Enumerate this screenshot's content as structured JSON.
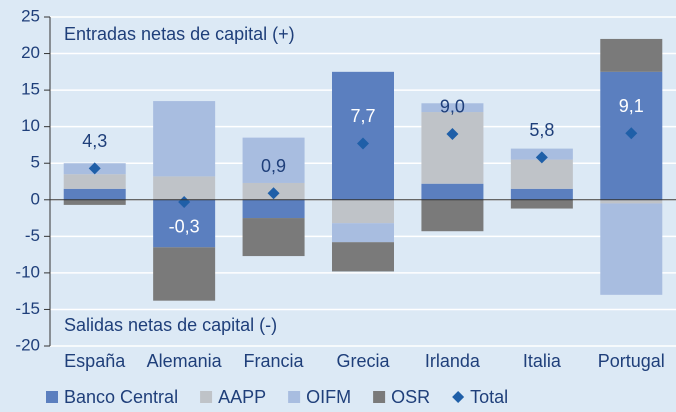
{
  "chart_data": {
    "type": "stacked-bar",
    "categories": [
      "España",
      "Alemania",
      "Francia",
      "Grecia",
      "Irlanda",
      "Italia",
      "Portugal"
    ],
    "series": [
      {
        "name": "Banco Central",
        "color": "#5b7fbf",
        "values": [
          1.5,
          -6.5,
          -2.5,
          17.5,
          2.2,
          1.5,
          17.5
        ]
      },
      {
        "name": "AAPP",
        "color": "#bfc3c8",
        "values": [
          2.0,
          3.2,
          2.3,
          -3.2,
          9.8,
          4.0,
          -0.5
        ]
      },
      {
        "name": "OIFM",
        "color": "#a8bde0",
        "values": [
          1.5,
          10.3,
          6.2,
          -2.6,
          1.2,
          1.5,
          -12.5
        ]
      },
      {
        "name": "OSR",
        "color": "#7a7a7a",
        "values": [
          -0.7,
          -7.3,
          -5.2,
          -4.0,
          -4.3,
          -1.2,
          4.5
        ]
      }
    ],
    "total": {
      "name": "Total",
      "color": "#1f5fa8",
      "values": [
        4.3,
        -0.3,
        0.9,
        7.7,
        9.0,
        5.8,
        9.1
      ],
      "value_labels": [
        "4,3",
        "-0,3",
        "0,9",
        "7,7",
        "9,0",
        "5,8",
        "9,1"
      ]
    },
    "annotations": [
      "Entradas netas de capital (+)",
      "Salidas netas de capital (-)"
    ],
    "ylim": [
      -20,
      25
    ],
    "yticks": [
      -20,
      -15,
      -10,
      -5,
      0,
      5,
      10,
      15,
      20,
      25
    ],
    "grid": true
  }
}
